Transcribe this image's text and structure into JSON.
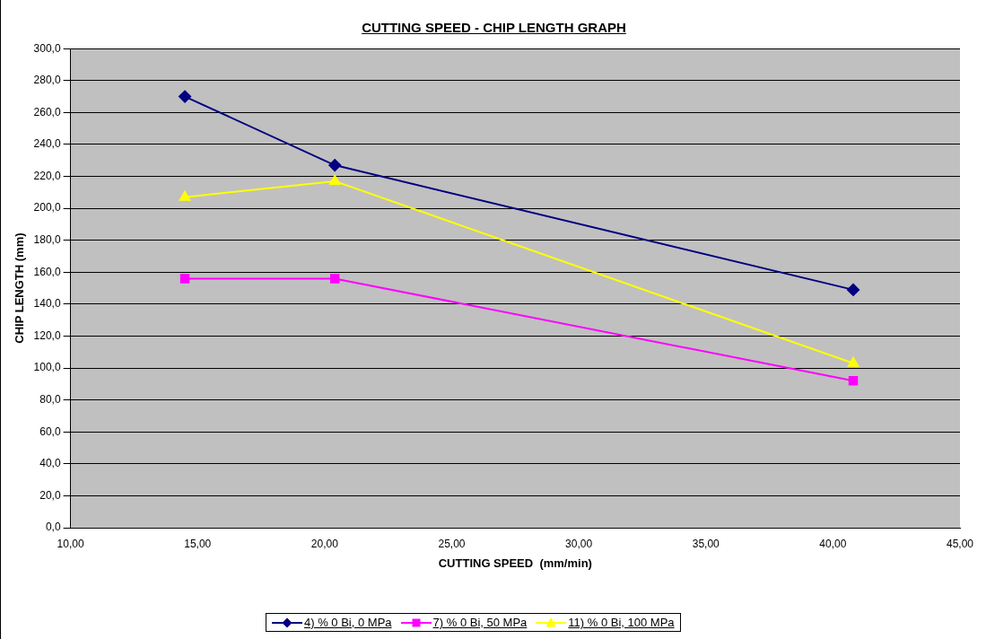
{
  "chart_data": {
    "type": "line",
    "title": "CUTTING SPEED - CHIP LENGTH GRAPH",
    "xlabel": "CUTTING SPEED  (mm/min)",
    "ylabel": "CHIP LENGTH (mm)",
    "x": [
      14.5,
      20.4,
      40.8
    ],
    "series": [
      {
        "name": "4)   % 0 Bi, 0 MPa",
        "color": "#000080",
        "marker": "diamond",
        "values": [
          270,
          227,
          149
        ]
      },
      {
        "name": "7)   % 0 Bi, 50 MPa",
        "color": "#ff00ff",
        "marker": "square",
        "values": [
          156,
          156,
          92
        ]
      },
      {
        "name": "11)   % 0 Bi, 100 MPa",
        "color": "#ffff00",
        "marker": "triangle",
        "values": [
          207,
          217,
          103
        ]
      }
    ],
    "xlim": [
      10,
      45
    ],
    "xticks": [
      {
        "value": 10,
        "label": "10,00"
      },
      {
        "value": 15,
        "label": "15,00"
      },
      {
        "value": 20,
        "label": "20,00"
      },
      {
        "value": 25,
        "label": "25,00"
      },
      {
        "value": 30,
        "label": "30,00"
      },
      {
        "value": 35,
        "label": "35,00"
      },
      {
        "value": 40,
        "label": "40,00"
      },
      {
        "value": 45,
        "label": "45,00"
      }
    ],
    "ylim": [
      0,
      300
    ],
    "yticks": [
      {
        "value": 0,
        "label": "0,0"
      },
      {
        "value": 20,
        "label": "20,0"
      },
      {
        "value": 40,
        "label": "40,0"
      },
      {
        "value": 60,
        "label": "60,0"
      },
      {
        "value": 80,
        "label": "80,0"
      },
      {
        "value": 100,
        "label": "100,0"
      },
      {
        "value": 120,
        "label": "120,0"
      },
      {
        "value": 140,
        "label": "140,0"
      },
      {
        "value": 160,
        "label": "160,0"
      },
      {
        "value": 180,
        "label": "180,0"
      },
      {
        "value": 200,
        "label": "200,0"
      },
      {
        "value": 220,
        "label": "220,0"
      },
      {
        "value": 240,
        "label": "240,0"
      },
      {
        "value": 260,
        "label": "260,0"
      },
      {
        "value": 280,
        "label": "280,0"
      },
      {
        "value": 300,
        "label": "300,0"
      }
    ],
    "grid": "y",
    "legend": "bottom",
    "line_style": "solid"
  }
}
